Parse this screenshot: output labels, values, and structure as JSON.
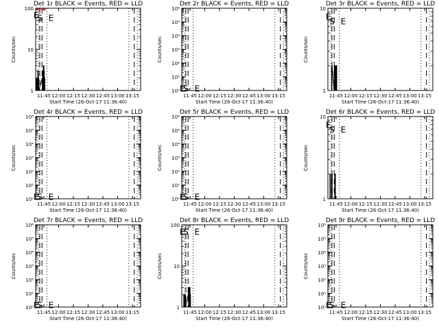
{
  "chart_data": [
    {
      "type": "line",
      "title": "Det 1r BLACK = Events, RED = LLD",
      "xlabel": "Start Time (26-Oct-17 11:36:40)",
      "ylabel": "Counts/sec",
      "y_scale": "log",
      "ylim": [
        1,
        100
      ],
      "xlim": [
        700,
        1395
      ],
      "x_ticks": [
        "11:45",
        "12:00",
        "12:15",
        "12:30",
        "12:45",
        "13:00",
        "13:15"
      ],
      "y_ticks": [
        {
          "value": 1,
          "label": "1"
        },
        {
          "value": 10,
          "label": "10"
        },
        {
          "value": 100,
          "label": "100"
        }
      ],
      "markers": [
        {
          "label": "E",
          "x": 703,
          "y": 70
        },
        {
          "label": "S",
          "x": 727,
          "y": 60
        },
        {
          "label": "E",
          "x": 802,
          "y": 60
        }
      ],
      "series": [
        {
          "role": "events",
          "color": "#000000",
          "x": [
            704,
            705,
            706,
            707,
            708,
            709,
            710,
            711,
            712,
            713,
            714,
            715,
            716,
            717,
            718,
            719,
            720,
            743,
            744,
            745,
            746,
            747,
            748,
            749,
            750,
            751,
            752,
            753,
            754,
            755,
            756,
            757,
            758,
            759,
            760,
            761
          ],
          "y": [
            2,
            1,
            2,
            1,
            2,
            2,
            1,
            2,
            1,
            2,
            3,
            1,
            2,
            3,
            1,
            2,
            1,
            2,
            1,
            2,
            3,
            2,
            1,
            3,
            4,
            2,
            3,
            1,
            4,
            2,
            3,
            1,
            2,
            1,
            2,
            1
          ]
        },
        {
          "role": "lld",
          "color": "#ff0000",
          "x": [
            706,
            707,
            708,
            709,
            710,
            711,
            712,
            713,
            714,
            715,
            759,
            760,
            761,
            762,
            763,
            764,
            765
          ],
          "y": [
            95,
            92,
            96,
            93,
            95,
            92,
            96,
            93,
            95,
            92,
            95,
            93,
            96,
            92,
            95,
            93,
            95
          ]
        }
      ]
    },
    {
      "type": "line",
      "title": "Det 2r BLACK = Events, RED = LLD",
      "xlabel": "Start Time (26-Oct-17 11:36:40)",
      "ylabel": "Counts/sec",
      "y_scale": "log",
      "ylim": [
        1,
        1000000
      ],
      "xlim": [
        700,
        1395
      ],
      "x_ticks": [
        "11:45",
        "12:00",
        "12:15",
        "12:30",
        "12:45",
        "13:00",
        "13:15"
      ],
      "y_ticks": [
        {
          "value": 1,
          "label": "10⁰"
        },
        {
          "value": 10,
          "label": "10¹"
        },
        {
          "value": 100,
          "label": "10²"
        },
        {
          "value": 1000,
          "label": "10³"
        },
        {
          "value": 10000,
          "label": "10⁴"
        },
        {
          "value": 100000,
          "label": "10⁵"
        },
        {
          "value": 1000000,
          "label": "10⁶"
        }
      ],
      "markers": [
        {
          "label": "E",
          "x": 703,
          "y": 1.5
        },
        {
          "label": "S",
          "x": 727,
          "y": 1.5
        },
        {
          "label": "E",
          "x": 802,
          "y": 1.5
        }
      ],
      "series": []
    },
    {
      "type": "line",
      "title": "Det 3r BLACK = Events, RED = LLD",
      "xlabel": "Start Time (26-Oct-17 11:36:40)",
      "ylabel": "Counts/sec",
      "y_scale": "log",
      "ylim": [
        1,
        10
      ],
      "xlim": [
        700,
        1395
      ],
      "x_ticks": [
        "11:45",
        "12:00",
        "12:15",
        "12:30",
        "12:45",
        "13:00",
        "13:15"
      ],
      "y_ticks": [
        {
          "value": 1,
          "label": "1"
        },
        {
          "value": 10,
          "label": "10"
        }
      ],
      "markers": [
        {
          "label": "E",
          "x": 703,
          "y": 8
        },
        {
          "label": "S",
          "x": 727,
          "y": 7
        },
        {
          "label": "E",
          "x": 802,
          "y": 7
        }
      ],
      "series": [
        {
          "role": "events",
          "color": "#000000",
          "x": [
            724,
            725,
            726,
            727,
            741,
            742,
            743,
            744,
            745,
            746,
            747,
            748,
            749,
            750,
            751,
            752,
            753,
            754,
            755,
            756,
            757,
            758,
            759
          ],
          "y": [
            1,
            2,
            1,
            2,
            1,
            2,
            1,
            2,
            2,
            1,
            2,
            1,
            2,
            2,
            1,
            2,
            1,
            2,
            1,
            2,
            1,
            2,
            1
          ]
        }
      ]
    },
    {
      "type": "line",
      "title": "Det 4r BLACK = Events, RED = LLD",
      "xlabel": "Start Time (26-Oct-17 11:36:40)",
      "ylabel": "Counts/sec",
      "y_scale": "log",
      "ylim": [
        1,
        1000000
      ],
      "xlim": [
        700,
        1395
      ],
      "x_ticks": [
        "11:45",
        "12:00",
        "12:15",
        "12:30",
        "12:45",
        "13:00",
        "13:15"
      ],
      "y_ticks": [
        {
          "value": 1,
          "label": "10⁰"
        },
        {
          "value": 10,
          "label": "10¹"
        },
        {
          "value": 100,
          "label": "10²"
        },
        {
          "value": 1000,
          "label": "10³"
        },
        {
          "value": 10000,
          "label": "10⁴"
        },
        {
          "value": 100000,
          "label": "10⁵"
        },
        {
          "value": 1000000,
          "label": "10⁶"
        }
      ],
      "markers": [
        {
          "label": "E",
          "x": 703,
          "y": 1.5
        },
        {
          "label": "S",
          "x": 727,
          "y": 1.5
        },
        {
          "label": "E",
          "x": 802,
          "y": 1.5
        }
      ],
      "series": []
    },
    {
      "type": "line",
      "title": "Det 5r BLACK = Events, RED = LLD",
      "xlabel": "Start Time (26-Oct-17 11:36:40)",
      "ylabel": "Counts/sec",
      "y_scale": "log",
      "ylim": [
        1,
        1000000
      ],
      "xlim": [
        700,
        1395
      ],
      "x_ticks": [
        "11:45",
        "12:00",
        "12:15",
        "12:30",
        "12:45",
        "13:00",
        "13:15"
      ],
      "y_ticks": [
        {
          "value": 1,
          "label": "10⁰"
        },
        {
          "value": 10,
          "label": "10¹"
        },
        {
          "value": 100,
          "label": "10²"
        },
        {
          "value": 1000,
          "label": "10³"
        },
        {
          "value": 10000,
          "label": "10⁴"
        },
        {
          "value": 100000,
          "label": "10⁵"
        },
        {
          "value": 1000000,
          "label": "10⁶"
        }
      ],
      "markers": [
        {
          "label": "E",
          "x": 703,
          "y": 1.5
        },
        {
          "label": "S",
          "x": 727,
          "y": 1.5
        },
        {
          "label": "E",
          "x": 802,
          "y": 1.5
        }
      ],
      "series": []
    },
    {
      "type": "line",
      "title": "Det 6r BLACK = Events, RED = LLD",
      "xlabel": "Start Time (26-Oct-17 11:36:40)",
      "ylabel": "Counts/sec",
      "y_scale": "log",
      "ylim": [
        1,
        10
      ],
      "xlim": [
        700,
        1395
      ],
      "x_ticks": [
        "11:45",
        "12:00",
        "12:15",
        "12:30",
        "12:45",
        "13:00",
        "13:15"
      ],
      "y_ticks": [
        {
          "value": 1,
          "label": "1"
        },
        {
          "value": 10,
          "label": "10"
        }
      ],
      "markers": [
        {
          "label": "E",
          "x": 703,
          "y": 8
        },
        {
          "label": "S",
          "x": 727,
          "y": 7
        },
        {
          "label": "E",
          "x": 802,
          "y": 7
        }
      ],
      "series": [
        {
          "role": "events",
          "color": "#000000",
          "x": [
            712,
            713,
            714,
            720,
            721,
            722,
            727,
            728,
            729,
            744,
            745,
            746,
            747,
            748,
            749,
            750
          ],
          "y": [
            1,
            2,
            1,
            1,
            2,
            1,
            1,
            2,
            1,
            1,
            2,
            1,
            2,
            1,
            2,
            1
          ]
        }
      ]
    },
    {
      "type": "line",
      "title": "Det 7r BLACK = Events, RED = LLD",
      "xlabel": "Start Time (26-Oct-17 11:36:40)",
      "ylabel": "Counts/sec",
      "y_scale": "log",
      "ylim": [
        1,
        1000000
      ],
      "xlim": [
        700,
        1395
      ],
      "x_ticks": [
        "11:45",
        "12:00",
        "12:15",
        "12:30",
        "12:45",
        "13:00",
        "13:15"
      ],
      "y_ticks": [
        {
          "value": 1,
          "label": "10⁰"
        },
        {
          "value": 10,
          "label": "10¹"
        },
        {
          "value": 100,
          "label": "10²"
        },
        {
          "value": 1000,
          "label": "10³"
        },
        {
          "value": 10000,
          "label": "10⁴"
        },
        {
          "value": 100000,
          "label": "10⁵"
        },
        {
          "value": 1000000,
          "label": "10⁶"
        }
      ],
      "markers": [
        {
          "label": "E",
          "x": 703,
          "y": 1.5
        },
        {
          "label": "S",
          "x": 727,
          "y": 1.5
        },
        {
          "label": "E",
          "x": 802,
          "y": 1.5
        }
      ],
      "series": []
    },
    {
      "type": "line",
      "title": "Det 8r BLACK = Events, RED = LLD",
      "xlabel": "Start Time (26-Oct-17 11:36:40)",
      "ylabel": "Counts/sec",
      "y_scale": "log",
      "ylim": [
        1,
        100
      ],
      "xlim": [
        700,
        1395
      ],
      "x_ticks": [
        "11:45",
        "12:00",
        "12:15",
        "12:30",
        "12:45",
        "13:00",
        "13:15"
      ],
      "y_ticks": [
        {
          "value": 1,
          "label": "1"
        },
        {
          "value": 10,
          "label": "10"
        },
        {
          "value": 100,
          "label": "100"
        }
      ],
      "markers": [
        {
          "label": "E",
          "x": 703,
          "y": 70
        },
        {
          "label": "S",
          "x": 727,
          "y": 70
        },
        {
          "label": "E",
          "x": 802,
          "y": 70
        }
      ],
      "series": [
        {
          "role": "events",
          "color": "#000000",
          "x": [
            712,
            713,
            714,
            715,
            716,
            717,
            718,
            719,
            720,
            721,
            722,
            723,
            724,
            725,
            742,
            743,
            744,
            745,
            746,
            747,
            748,
            749,
            750,
            751,
            752,
            753,
            754,
            755,
            756,
            757,
            758
          ],
          "y": [
            1,
            2,
            1,
            2,
            2,
            1,
            2,
            1,
            2,
            1,
            2,
            1,
            2,
            1,
            2,
            3,
            2,
            1,
            3,
            2,
            3,
            1,
            2,
            3,
            2,
            1,
            3,
            2,
            1,
            2,
            1
          ]
        }
      ]
    },
    {
      "type": "line",
      "title": "Det 9r BLACK = Events, RED = LLD",
      "xlabel": "Start Time (26-Oct-17 11:36:40)",
      "ylabel": "Counts/sec",
      "y_scale": "log",
      "ylim": [
        1,
        1000000
      ],
      "xlim": [
        700,
        1395
      ],
      "x_ticks": [
        "11:45",
        "12:00",
        "12:15",
        "12:30",
        "12:45",
        "13:00",
        "13:15"
      ],
      "y_ticks": [
        {
          "value": 1,
          "label": "10⁰"
        },
        {
          "value": 10,
          "label": "10¹"
        },
        {
          "value": 100,
          "label": "10²"
        },
        {
          "value": 1000,
          "label": "10³"
        },
        {
          "value": 10000,
          "label": "10⁴"
        },
        {
          "value": 100000,
          "label": "10⁵"
        },
        {
          "value": 1000000,
          "label": "10⁶"
        }
      ],
      "markers": [
        {
          "label": "E",
          "x": 703,
          "y": 1.5
        },
        {
          "label": "S",
          "x": 727,
          "y": 1.5
        },
        {
          "label": "E",
          "x": 802,
          "y": 1.5
        }
      ],
      "series": []
    }
  ],
  "reference_lines": {
    "dotted_x": [
      720,
      775,
      1317,
      1373
    ],
    "dashed_x": [
      727,
      742,
      1353
    ]
  },
  "styles": {
    "background": "#ffffff",
    "axis_color": "#000000",
    "events_color": "#000000",
    "lld_color": "#ff0000"
  }
}
